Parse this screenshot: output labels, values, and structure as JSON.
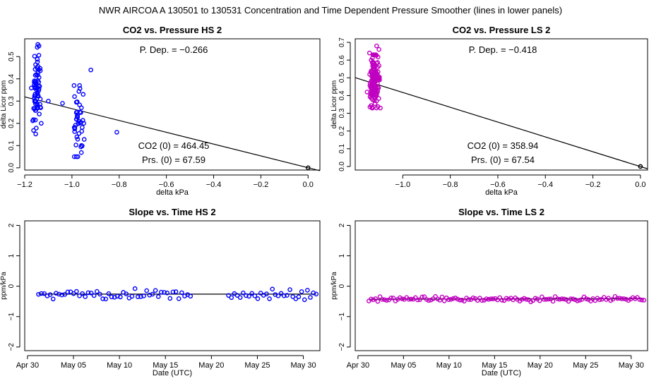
{
  "figure_title": "NWR   AIRCOA A   130501 to 130531   Concentration and Time Dependent Pressure Smoother (lines in lower panels)",
  "colors": {
    "hs": "#0000ff",
    "ls": "#c000c0",
    "fit": "#000000"
  },
  "chart_data": [
    {
      "id": "co2-hs",
      "type": "scatter",
      "title": "CO2 vs. Pressure HS 2",
      "xlabel": "delta kPa",
      "ylabel": "delta Licor ppm",
      "xlim": [
        -1.2,
        0.05
      ],
      "ylim": [
        -0.01,
        0.58
      ],
      "xticks": [
        -1.2,
        -1.0,
        -0.8,
        -0.6,
        -0.4,
        -0.2,
        0.0
      ],
      "xtick_labels": [
        "−1.2",
        "−1.0",
        "−0.8",
        "−0.6",
        "−0.4",
        "−0.2",
        "0.0"
      ],
      "yticks": [
        0.0,
        0.1,
        0.2,
        0.3,
        0.4,
        0.5
      ],
      "ytick_labels": [
        "0.0",
        "0.1",
        "0.2",
        "0.3",
        "0.4",
        "0.5"
      ],
      "pdep_text": "P. Dep. =  −0.266",
      "co2_text": "CO2 (0) =  464.45",
      "prs_text": "Prs. (0) =  67.59",
      "fit_line": {
        "x": [
          -1.2,
          0.05
        ],
        "y": [
          0.319,
          -0.013
        ]
      },
      "origin_point": {
        "x": 0.0,
        "y": 0.0
      },
      "clusters": [
        {
          "cx": -1.15,
          "sx": 0.008,
          "ymin": 0.15,
          "ymax": 0.56,
          "n": 72,
          "seed": 11
        },
        {
          "cx": -0.97,
          "sx": 0.012,
          "ymin": 0.05,
          "ymax": 0.37,
          "n": 42,
          "seed": 23
        }
      ],
      "extra_points": [
        {
          "x": -1.1,
          "y": 0.3
        },
        {
          "x": -1.04,
          "y": 0.29
        },
        {
          "x": -0.92,
          "y": 0.44
        },
        {
          "x": -0.81,
          "y": 0.16
        },
        {
          "x": -0.99,
          "y": 0.05
        },
        {
          "x": -0.96,
          "y": 0.27
        },
        {
          "x": -1.13,
          "y": 0.2
        },
        {
          "x": -0.95,
          "y": 0.2
        }
      ]
    },
    {
      "id": "co2-ls",
      "type": "scatter",
      "title": "CO2 vs. Pressure LS 2",
      "xlabel": "delta kPa",
      "ylabel": "delta Licor ppm",
      "xlim": [
        -1.2,
        0.03
      ],
      "ylim": [
        -0.02,
        0.72
      ],
      "xticks": [
        -1.0,
        -0.8,
        -0.6,
        -0.4,
        -0.2,
        0.0
      ],
      "xtick_labels": [
        "−1.0",
        "−0.8",
        "−0.6",
        "−0.4",
        "−0.2",
        "0.0"
      ],
      "yticks": [
        0.0,
        0.1,
        0.2,
        0.3,
        0.4,
        0.5,
        0.6,
        0.7
      ],
      "ytick_labels": [
        "0.0",
        "0.1",
        "0.2",
        "0.3",
        "0.4",
        "0.5",
        "0.6",
        "0.7"
      ],
      "pdep_text": "P. Dep. =  −0.418",
      "co2_text": "CO2 (0) =  358.94",
      "prs_text": "Prs. (0) =  67.54",
      "fit_line": {
        "x": [
          -1.2,
          0.03
        ],
        "y": [
          0.501,
          -0.013
        ]
      },
      "origin_point": {
        "x": 0.0,
        "y": 0.0
      },
      "clusters": [
        {
          "cx": -1.12,
          "sx": 0.01,
          "ymin": 0.33,
          "ymax": 0.63,
          "n": 150,
          "seed": 37
        }
      ],
      "extra_points": [
        {
          "x": -1.11,
          "y": 0.68
        },
        {
          "x": -1.1,
          "y": 0.66
        },
        {
          "x": -1.15,
          "y": 0.42
        },
        {
          "x": -1.14,
          "y": 0.64
        }
      ]
    },
    {
      "id": "slope-hs",
      "type": "scatter",
      "title": "Slope vs. Time HS 2",
      "xlabel": "Date (UTC)",
      "ylabel": "ppm/kPa",
      "xlim": [
        -0.3,
        31.8
      ],
      "ylim": [
        -2.12,
        2.15
      ],
      "xticks": [
        0,
        5,
        10,
        15,
        20,
        25,
        30
      ],
      "xtick_labels": [
        "Apr 30",
        "May 05",
        "May 10",
        "May 15",
        "May 20",
        "May 25",
        "May 30"
      ],
      "yticks": [
        -2,
        -1,
        0,
        1,
        2
      ],
      "ytick_labels": [
        "−2",
        "−1",
        "0",
        "1",
        "2"
      ],
      "series": [
        {
          "name": "slope",
          "x_start": 1.2,
          "x_end": 31.4,
          "n": 96,
          "mean": -0.26,
          "spread": 0.13,
          "gap": [
            17.9,
            21.6
          ],
          "seed": 5
        }
      ],
      "smoother": {
        "x": [
          1.2,
          31.4
        ],
        "y": [
          -0.26,
          -0.26
        ]
      }
    },
    {
      "id": "slope-ls",
      "type": "scatter",
      "title": "Slope vs. Time LS 2",
      "xlabel": "Date (UTC)",
      "ylabel": "ppm/kPa",
      "xlim": [
        -0.3,
        31.8
      ],
      "ylim": [
        -2.12,
        2.15
      ],
      "xticks": [
        0,
        5,
        10,
        15,
        20,
        25,
        30
      ],
      "xtick_labels": [
        "Apr 30",
        "May 05",
        "May 10",
        "May 15",
        "May 20",
        "May 25",
        "May 30"
      ],
      "yticks": [
        -2,
        -1,
        0,
        1,
        2
      ],
      "ytick_labels": [
        "−2",
        "−1",
        "0",
        "1",
        "2"
      ],
      "series": [
        {
          "name": "slope",
          "x_start": 1.2,
          "x_end": 31.4,
          "n": 125,
          "mean": -0.42,
          "spread": 0.06,
          "gap": null,
          "seed": 9
        }
      ],
      "smoother": {
        "x": [
          1.2,
          31.4
        ],
        "y": [
          -0.43,
          -0.41
        ]
      }
    }
  ]
}
